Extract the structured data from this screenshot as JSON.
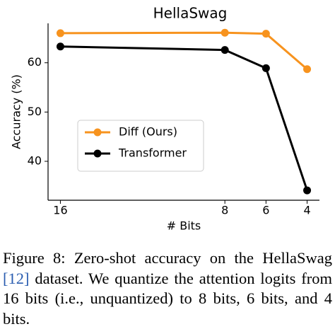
{
  "chart_data": {
    "type": "line",
    "title": "HellaSwag",
    "x_label": "# Bits",
    "y_label": "Accuracy (%)",
    "x": [
      16,
      8,
      6,
      4
    ],
    "xlim": [
      16.6,
      3.4
    ],
    "xticks": [
      16,
      8,
      6,
      4
    ],
    "ylim": [
      32.1,
      68
    ],
    "yticks": [
      40,
      50,
      60
    ],
    "grid": false,
    "legend": "center left",
    "series": [
      {
        "name": "Diff (Ours)",
        "color": "#f7931e",
        "values": [
          66.0,
          66.1,
          65.9,
          58.7
        ]
      },
      {
        "name": "Transformer",
        "color": "#000000",
        "values": [
          63.3,
          62.6,
          58.9,
          34.1
        ]
      }
    ]
  },
  "caption": {
    "label": "Figure 8:",
    "text_before": "Zero-shot accuracy on the HellaSwag",
    "citation": "[12]",
    "text_after": "dataset. We quantize the attention logits from 16 bits (i.e., unquantized) to 8 bits, 6 bits, and 4 bits."
  }
}
